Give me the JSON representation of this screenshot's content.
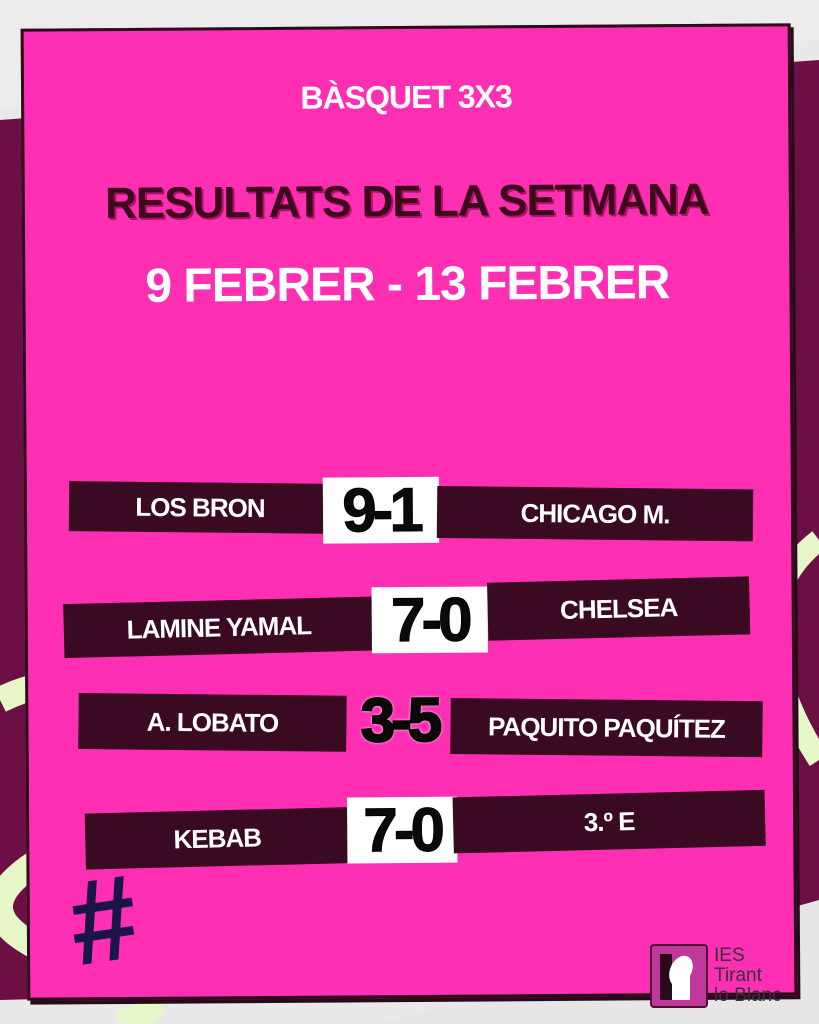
{
  "header": {
    "sport": "BÀSQUET 3X3",
    "title": "RESULTATS DE LA SETMANA",
    "dates": "9 FEBRER - 13 FEBRER"
  },
  "results": [
    {
      "home": "LOS BRON",
      "score": "9-1",
      "away": "CHICAGO M."
    },
    {
      "home": "LAMINE YAMAL",
      "score": "7-0",
      "away": "CHELSEA"
    },
    {
      "home": "A. LOBATO",
      "score": "3-5",
      "away": "PAQUITO PAQUÍTEZ"
    },
    {
      "home": "KEBAB",
      "score": "7-0",
      "away": "3.º E"
    }
  ],
  "decoration": {
    "hashtag": "#"
  },
  "logo": {
    "line1": "IES",
    "line2": "Tirant",
    "line3": "lo Blanc"
  },
  "colors": {
    "card": "#ff2fb4",
    "bar": "#3a0a22",
    "title": "#3d0a1c",
    "maroon": "#6b0f45",
    "lime": "#e8f7c8"
  }
}
